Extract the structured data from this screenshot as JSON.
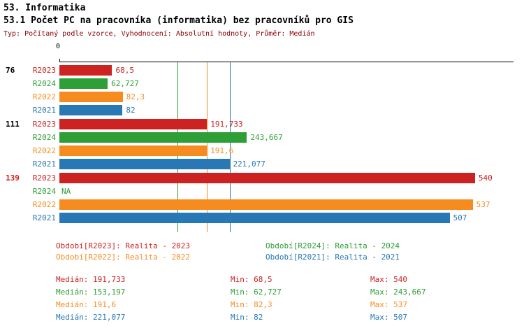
{
  "header": {
    "title": "53. Informatika",
    "subtitle": "53.1 Počet PC na pracovníka (informatika) bez pracovníků pro GIS",
    "meta": "Typ: Počítaný podle vzorce, Vyhodnocení: Absolutní hodnoty, Průměr: Medián"
  },
  "colors": {
    "R2023": "#CC2222",
    "R2024": "#2E9E36",
    "R2022": "#F68C1F",
    "R2021": "#2878B5",
    "meta_text": "#8B0000",
    "axis": "#000000"
  },
  "chart_data": {
    "type": "bar",
    "orientation": "horizontal",
    "title": "53.1 Počet PC na pracovníka (informatika) bez pracovníků pro GIS",
    "axis_zero_label": "0",
    "xmax": 590,
    "grid": false,
    "legend_position": "bottom",
    "series_order": [
      "R2023",
      "R2024",
      "R2022",
      "R2021"
    ],
    "groups": [
      {
        "label": "76",
        "label_color": "#000000",
        "bars": [
          {
            "series": "R2023",
            "value": 68.5,
            "value_label": "68,5"
          },
          {
            "series": "R2024",
            "value": 62.727,
            "value_label": "62,727"
          },
          {
            "series": "R2022",
            "value": 82.3,
            "value_label": "82,3"
          },
          {
            "series": "R2021",
            "value": 82,
            "value_label": "82"
          }
        ]
      },
      {
        "label": "111",
        "label_color": "#000000",
        "bars": [
          {
            "series": "R2023",
            "value": 191.733,
            "value_label": "191,733"
          },
          {
            "series": "R2024",
            "value": 243.667,
            "value_label": "243,667"
          },
          {
            "series": "R2022",
            "value": 191.6,
            "value_label": "191,6"
          },
          {
            "series": "R2021",
            "value": 221.077,
            "value_label": "221,077"
          }
        ]
      },
      {
        "label": "139",
        "label_color": "#CC2222",
        "bars": [
          {
            "series": "R2023",
            "value": 540,
            "value_label": "540"
          },
          {
            "series": "R2024",
            "value": null,
            "value_label": "NA"
          },
          {
            "series": "R2022",
            "value": 537,
            "value_label": "537"
          },
          {
            "series": "R2021",
            "value": 507,
            "value_label": "507"
          }
        ]
      }
    ],
    "median_lines": [
      {
        "series": "R2023",
        "value": 191.733
      },
      {
        "series": "R2024",
        "value": 153.197
      },
      {
        "series": "R2022",
        "value": 191.6
      },
      {
        "series": "R2021",
        "value": 221.077
      }
    ]
  },
  "legend": [
    {
      "series": "R2023",
      "text": "Období[R2023]: Realita - 2023"
    },
    {
      "series": "R2024",
      "text": "Období[R2024]: Realita - 2024"
    },
    {
      "series": "R2022",
      "text": "Období[R2022]: Realita - 2022"
    },
    {
      "series": "R2021",
      "text": "Období[R2021]: Realita - 2021"
    }
  ],
  "stats": [
    {
      "series": "R2023",
      "median": "Medián: 191,733",
      "min": "Min: 68,5",
      "max": "Max: 540"
    },
    {
      "series": "R2024",
      "median": "Medián: 153,197",
      "min": "Min: 62,727",
      "max": "Max: 243,667"
    },
    {
      "series": "R2022",
      "median": "Medián: 191,6",
      "min": "Min: 82,3",
      "max": "Max: 537"
    },
    {
      "series": "R2021",
      "median": "Medián: 221,077",
      "min": "Min: 82",
      "max": "Max: 507"
    }
  ]
}
